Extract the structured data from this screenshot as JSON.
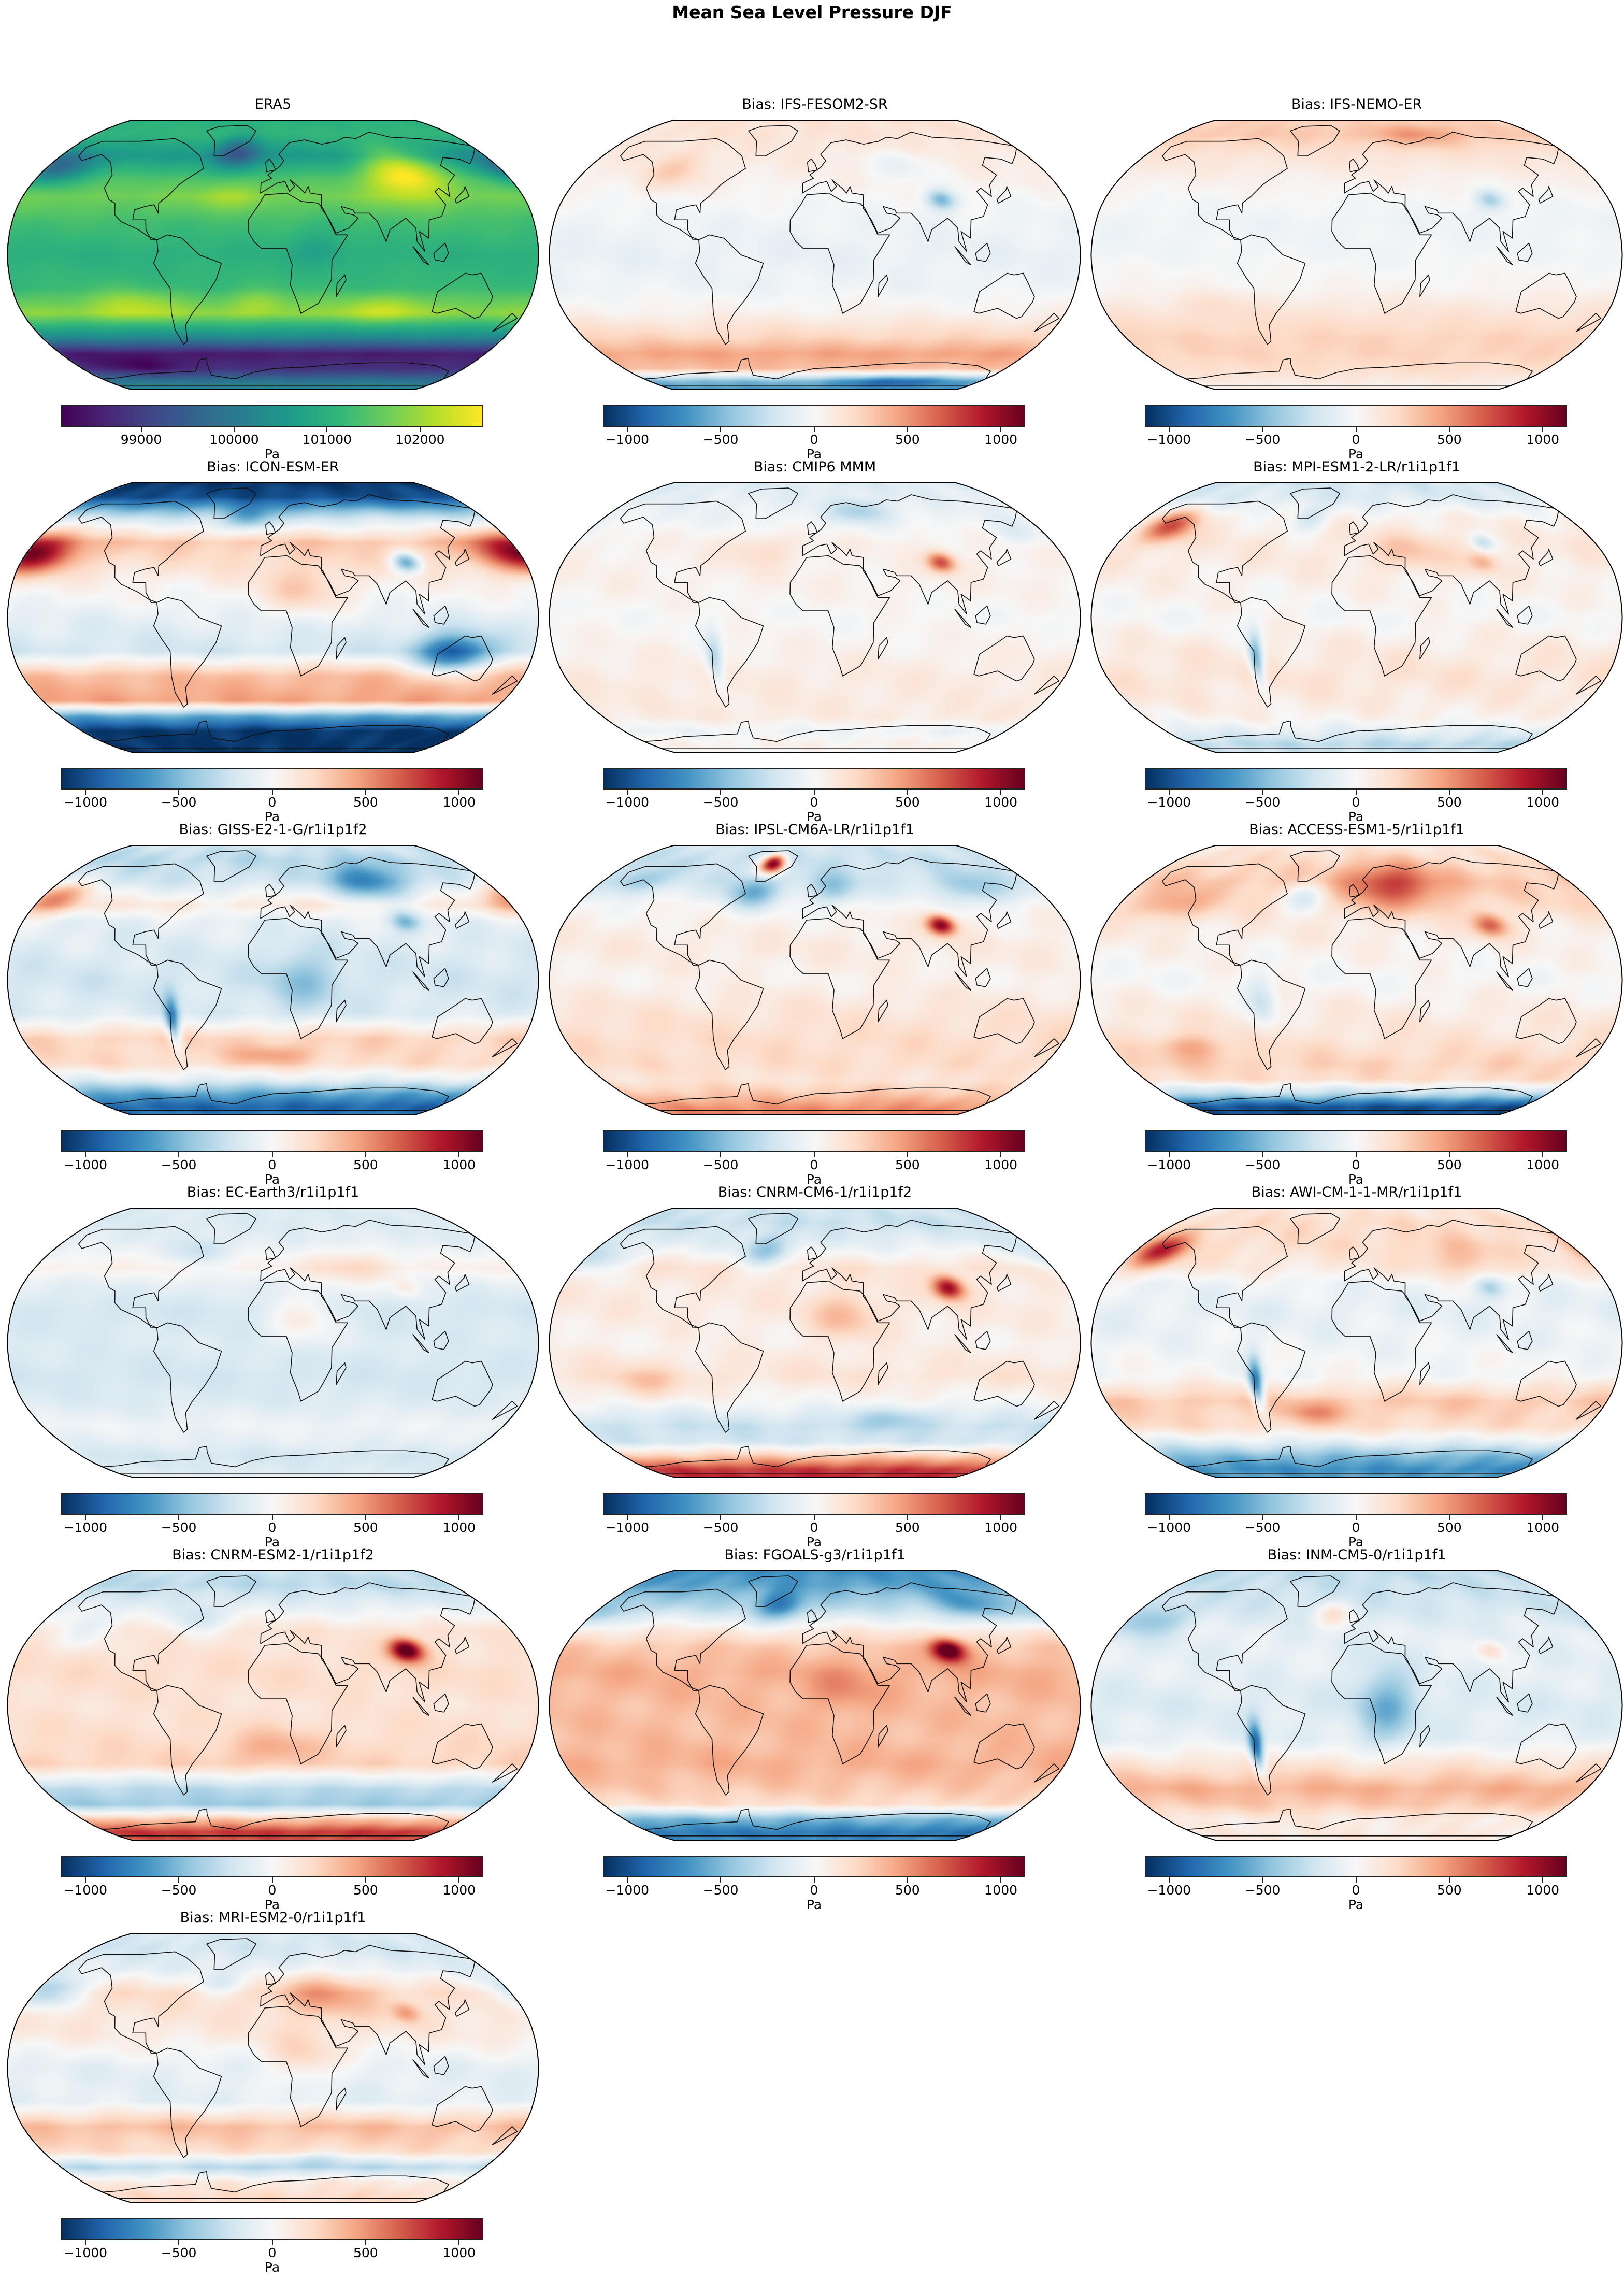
{
  "figure": {
    "title": "Mean Sea Level Pressure DJF"
  },
  "chart_data": [
    {
      "type": "heatmap",
      "title": "ERA5",
      "colormap": "viridis",
      "colorbar": {
        "label": "Pa",
        "range": [
          98150,
          102670
        ],
        "ticks": [
          99000,
          100000,
          101000,
          102000
        ],
        "tick_labels": [
          "99000",
          "100000",
          "101000",
          "102000"
        ]
      }
    },
    {
      "type": "heatmap",
      "title": "Bias: IFS-FESOM2-SR",
      "colormap": "RdBu_r",
      "colorbar": {
        "label": "Pa",
        "range": [
          -1124,
          1124
        ],
        "ticks": [
          -1000,
          -500,
          0,
          500,
          1000
        ],
        "tick_labels": [
          "−1000",
          "−500",
          "0",
          "500",
          "1000"
        ]
      }
    },
    {
      "type": "heatmap",
      "title": "Bias: IFS-NEMO-ER",
      "colormap": "RdBu_r",
      "colorbar": {
        "label": "Pa",
        "range": [
          -1124,
          1124
        ],
        "ticks": [
          -1000,
          -500,
          0,
          500,
          1000
        ],
        "tick_labels": [
          "−1000",
          "−500",
          "0",
          "500",
          "1000"
        ]
      }
    },
    {
      "type": "heatmap",
      "title": "Bias: ICON-ESM-ER",
      "colormap": "RdBu_r",
      "colorbar": {
        "label": "Pa",
        "range": [
          -1124,
          1124
        ],
        "ticks": [
          -1000,
          -500,
          0,
          500,
          1000
        ],
        "tick_labels": [
          "−1000",
          "−500",
          "0",
          "500",
          "1000"
        ]
      }
    },
    {
      "type": "heatmap",
      "title": "Bias: CMIP6 MMM",
      "colormap": "RdBu_r",
      "colorbar": {
        "label": "Pa",
        "range": [
          -1124,
          1124
        ],
        "ticks": [
          -1000,
          -500,
          0,
          500,
          1000
        ],
        "tick_labels": [
          "−1000",
          "−500",
          "0",
          "500",
          "1000"
        ]
      }
    },
    {
      "type": "heatmap",
      "title": "Bias: MPI-ESM1-2-LR/r1i1p1f1",
      "colormap": "RdBu_r",
      "colorbar": {
        "label": "Pa",
        "range": [
          -1124,
          1124
        ],
        "ticks": [
          -1000,
          -500,
          0,
          500,
          1000
        ],
        "tick_labels": [
          "−1000",
          "−500",
          "0",
          "500",
          "1000"
        ]
      }
    },
    {
      "type": "heatmap",
      "title": "Bias: GISS-E2-1-G/r1i1p1f2",
      "colormap": "RdBu_r",
      "colorbar": {
        "label": "Pa",
        "range": [
          -1124,
          1124
        ],
        "ticks": [
          -1000,
          -500,
          0,
          500,
          1000
        ],
        "tick_labels": [
          "−1000",
          "−500",
          "0",
          "500",
          "1000"
        ]
      }
    },
    {
      "type": "heatmap",
      "title": "Bias: IPSL-CM6A-LR/r1i1p1f1",
      "colormap": "RdBu_r",
      "colorbar": {
        "label": "Pa",
        "range": [
          -1124,
          1124
        ],
        "ticks": [
          -1000,
          -500,
          0,
          500,
          1000
        ],
        "tick_labels": [
          "−1000",
          "−500",
          "0",
          "500",
          "1000"
        ]
      }
    },
    {
      "type": "heatmap",
      "title": "Bias: ACCESS-ESM1-5/r1i1p1f1",
      "colormap": "RdBu_r",
      "colorbar": {
        "label": "Pa",
        "range": [
          -1124,
          1124
        ],
        "ticks": [
          -1000,
          -500,
          0,
          500,
          1000
        ],
        "tick_labels": [
          "−1000",
          "−500",
          "0",
          "500",
          "1000"
        ]
      }
    },
    {
      "type": "heatmap",
      "title": "Bias: EC-Earth3/r1i1p1f1",
      "colormap": "RdBu_r",
      "colorbar": {
        "label": "Pa",
        "range": [
          -1124,
          1124
        ],
        "ticks": [
          -1000,
          -500,
          0,
          500,
          1000
        ],
        "tick_labels": [
          "−1000",
          "−500",
          "0",
          "500",
          "1000"
        ]
      }
    },
    {
      "type": "heatmap",
      "title": "Bias: CNRM-CM6-1/r1i1p1f2",
      "colormap": "RdBu_r",
      "colorbar": {
        "label": "Pa",
        "range": [
          -1124,
          1124
        ],
        "ticks": [
          -1000,
          -500,
          0,
          500,
          1000
        ],
        "tick_labels": [
          "−1000",
          "−500",
          "0",
          "500",
          "1000"
        ]
      }
    },
    {
      "type": "heatmap",
      "title": "Bias: AWI-CM-1-1-MR/r1i1p1f1",
      "colormap": "RdBu_r",
      "colorbar": {
        "label": "Pa",
        "range": [
          -1124,
          1124
        ],
        "ticks": [
          -1000,
          -500,
          0,
          500,
          1000
        ],
        "tick_labels": [
          "−1000",
          "−500",
          "0",
          "500",
          "1000"
        ]
      }
    },
    {
      "type": "heatmap",
      "title": "Bias: CNRM-ESM2-1/r1i1p1f2",
      "colormap": "RdBu_r",
      "colorbar": {
        "label": "Pa",
        "range": [
          -1124,
          1124
        ],
        "ticks": [
          -1000,
          -500,
          0,
          500,
          1000
        ],
        "tick_labels": [
          "−1000",
          "−500",
          "0",
          "500",
          "1000"
        ]
      }
    },
    {
      "type": "heatmap",
      "title": "Bias: FGOALS-g3/r1i1p1f1",
      "colormap": "RdBu_r",
      "colorbar": {
        "label": "Pa",
        "range": [
          -1124,
          1124
        ],
        "ticks": [
          -1000,
          -500,
          0,
          500,
          1000
        ],
        "tick_labels": [
          "−1000",
          "−500",
          "0",
          "500",
          "1000"
        ]
      }
    },
    {
      "type": "heatmap",
      "title": "Bias: INM-CM5-0/r1i1p1f1",
      "colormap": "RdBu_r",
      "colorbar": {
        "label": "Pa",
        "range": [
          -1124,
          1124
        ],
        "ticks": [
          -1000,
          -500,
          0,
          500,
          1000
        ],
        "tick_labels": [
          "−1000",
          "−500",
          "0",
          "500",
          "1000"
        ]
      }
    },
    {
      "type": "heatmap",
      "title": "Bias: MRI-ESM2-0/r1i1p1f1",
      "colormap": "RdBu_r",
      "colorbar": {
        "label": "Pa",
        "range": [
          -1124,
          1124
        ],
        "ticks": [
          -1000,
          -500,
          0,
          500,
          1000
        ],
        "tick_labels": [
          "−1000",
          "−500",
          "0",
          "500",
          "1000"
        ]
      }
    }
  ]
}
